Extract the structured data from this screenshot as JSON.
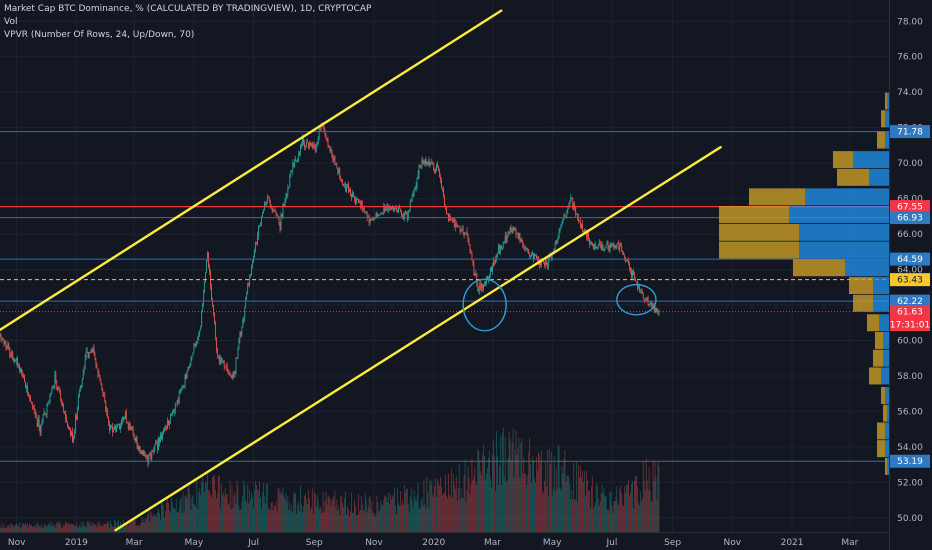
{
  "legend": {
    "line1": "Market Cap BTC Dominance, % (CALCULATED BY TRADINGVIEW), 1D, CRYPTOCAP",
    "line2": "Vol",
    "line3": "VPVR (Number Of Rows, 24, Up/Down, 70)"
  },
  "chart_data": {
    "type": "candlestick",
    "y_axis": {
      "min": 49.2,
      "max": 79.2,
      "ticks": [
        50,
        52,
        54,
        56,
        58,
        60,
        62,
        64,
        66,
        68,
        70,
        72,
        74,
        76,
        78
      ],
      "tick_labels": [
        "50.00",
        "52.00",
        "54.00",
        "56.00",
        "58.00",
        "60.00",
        "62.00",
        "64.00",
        "66.00",
        "68.00",
        "70.00",
        "72.00",
        "74.00",
        "76.00",
        "78.00"
      ]
    },
    "x_axis": {
      "start": "2018-10-15",
      "end": "2021-04-10",
      "tick_labels": [
        {
          "label": "Nov",
          "date": "2018-11-01"
        },
        {
          "label": "2019",
          "date": "2019-01-01"
        },
        {
          "label": "Mar",
          "date": "2019-03-01"
        },
        {
          "label": "May",
          "date": "2019-05-01"
        },
        {
          "label": "Jul",
          "date": "2019-07-01"
        },
        {
          "label": "Sep",
          "date": "2019-09-01"
        },
        {
          "label": "Nov",
          "date": "2019-11-01"
        },
        {
          "label": "2020",
          "date": "2020-01-01"
        },
        {
          "label": "Mar",
          "date": "2020-03-01"
        },
        {
          "label": "May",
          "date": "2020-05-01"
        },
        {
          "label": "Jul",
          "date": "2020-07-01"
        },
        {
          "label": "Sep",
          "date": "2020-09-01"
        },
        {
          "label": "Nov",
          "date": "2020-11-01"
        },
        {
          "label": "2021",
          "date": "2021-01-01"
        },
        {
          "label": "Mar",
          "date": "2021-03-01"
        }
      ]
    },
    "price_path": [
      {
        "date": "2018-10-15",
        "value": 60.2
      },
      {
        "date": "2018-11-05",
        "value": 58.3
      },
      {
        "date": "2018-11-25",
        "value": 55.0
      },
      {
        "date": "2018-12-10",
        "value": 57.8
      },
      {
        "date": "2018-12-28",
        "value": 54.3
      },
      {
        "date": "2019-01-10",
        "value": 59.0
      },
      {
        "date": "2019-01-18",
        "value": 59.6
      },
      {
        "date": "2019-02-05",
        "value": 54.8
      },
      {
        "date": "2019-02-20",
        "value": 55.6
      },
      {
        "date": "2019-03-05",
        "value": 54.0
      },
      {
        "date": "2019-03-15",
        "value": 53.3
      },
      {
        "date": "2019-04-05",
        "value": 55.3
      },
      {
        "date": "2019-04-20",
        "value": 57.5
      },
      {
        "date": "2019-05-08",
        "value": 61.0
      },
      {
        "date": "2019-05-15",
        "value": 65.0
      },
      {
        "date": "2019-05-25",
        "value": 59.0
      },
      {
        "date": "2019-06-10",
        "value": 57.8
      },
      {
        "date": "2019-06-25",
        "value": 63.0
      },
      {
        "date": "2019-07-05",
        "value": 66.0
      },
      {
        "date": "2019-07-15",
        "value": 68.2
      },
      {
        "date": "2019-07-28",
        "value": 66.6
      },
      {
        "date": "2019-08-10",
        "value": 69.8
      },
      {
        "date": "2019-08-20",
        "value": 71.2
      },
      {
        "date": "2019-09-02",
        "value": 70.8
      },
      {
        "date": "2019-09-08",
        "value": 72.3
      },
      {
        "date": "2019-09-20",
        "value": 70.3
      },
      {
        "date": "2019-10-01",
        "value": 68.7
      },
      {
        "date": "2019-10-15",
        "value": 68.0
      },
      {
        "date": "2019-10-28",
        "value": 66.7
      },
      {
        "date": "2019-11-20",
        "value": 67.6
      },
      {
        "date": "2019-12-05",
        "value": 66.9
      },
      {
        "date": "2019-12-20",
        "value": 70.2
      },
      {
        "date": "2020-01-05",
        "value": 69.7
      },
      {
        "date": "2020-01-15",
        "value": 67.0
      },
      {
        "date": "2020-02-05",
        "value": 65.8
      },
      {
        "date": "2020-02-15",
        "value": 62.8
      },
      {
        "date": "2020-02-25",
        "value": 63.6
      },
      {
        "date": "2020-03-10",
        "value": 65.4
      },
      {
        "date": "2020-03-22",
        "value": 66.4
      },
      {
        "date": "2020-04-05",
        "value": 65.0
      },
      {
        "date": "2020-04-25",
        "value": 64.2
      },
      {
        "date": "2020-05-10",
        "value": 66.4
      },
      {
        "date": "2020-05-20",
        "value": 67.9
      },
      {
        "date": "2020-05-28",
        "value": 66.7
      },
      {
        "date": "2020-06-10",
        "value": 65.4
      },
      {
        "date": "2020-06-25",
        "value": 65.3
      },
      {
        "date": "2020-07-10",
        "value": 65.3
      },
      {
        "date": "2020-07-22",
        "value": 63.7
      },
      {
        "date": "2020-08-02",
        "value": 62.5
      },
      {
        "date": "2020-08-12",
        "value": 61.9
      },
      {
        "date": "2020-08-18",
        "value": 61.6
      }
    ],
    "volume_profile_rows": [
      {
        "price": 73.5,
        "up": 0.01,
        "down": 0.01
      },
      {
        "price": 72.5,
        "up": 0.02,
        "down": 0.02
      },
      {
        "price": 71.3,
        "up": 0.04,
        "down": 0.02
      },
      {
        "price": 70.2,
        "up": 0.1,
        "down": 0.18
      },
      {
        "price": 69.2,
        "up": 0.16,
        "down": 0.1
      },
      {
        "price": 68.1,
        "up": 0.28,
        "down": 0.42
      },
      {
        "price": 67.1,
        "up": 0.35,
        "down": 0.5
      },
      {
        "price": 66.1,
        "up": 0.4,
        "down": 0.45
      },
      {
        "price": 65.1,
        "up": 0.4,
        "down": 0.45
      },
      {
        "price": 64.1,
        "up": 0.26,
        "down": 0.22
      },
      {
        "price": 63.1,
        "up": 0.12,
        "down": 0.08
      },
      {
        "price": 62.1,
        "up": 0.1,
        "down": 0.08
      },
      {
        "price": 61.0,
        "up": 0.06,
        "down": 0.05
      },
      {
        "price": 60.0,
        "up": 0.04,
        "down": 0.03
      },
      {
        "price": 59.0,
        "up": 0.05,
        "down": 0.03
      },
      {
        "price": 58.0,
        "up": 0.06,
        "down": 0.04
      },
      {
        "price": 56.9,
        "up": 0.02,
        "down": 0.02
      },
      {
        "price": 55.9,
        "up": 0.02,
        "down": 0.01
      },
      {
        "price": 54.9,
        "up": 0.04,
        "down": 0.02
      },
      {
        "price": 53.9,
        "up": 0.04,
        "down": 0.02
      },
      {
        "price": 52.9,
        "up": 0.01,
        "down": 0.01
      }
    ],
    "horizontal_levels": [
      {
        "value": 71.78,
        "label": "71.78",
        "color": "#2f6fb3",
        "label_bg": "#2f79c2",
        "style": "solid"
      },
      {
        "value": 67.55,
        "label": "67.55",
        "color": "#f23645",
        "label_bg": "#f23645",
        "style": "solid"
      },
      {
        "value": 66.93,
        "label": "66.93",
        "color": "#2f6fb3",
        "label_bg": "#2f79c2",
        "style": "solid"
      },
      {
        "value": 64.59,
        "label": "64.59",
        "color": "#2f6fb3",
        "label_bg": "#2f79c2",
        "style": "solid"
      },
      {
        "value": 63.43,
        "label": "63.43",
        "color": "#f7c82c",
        "label_bg": "#f7c82c",
        "style": "dashed"
      },
      {
        "value": 62.22,
        "label": "62.22",
        "color": "#2f6fb3",
        "label_bg": "#2f79c2",
        "style": "solid"
      },
      {
        "value": 61.63,
        "label": "61.63",
        "color": "#f23645",
        "label_bg": "#f23645",
        "style": "dotted"
      },
      {
        "value": 53.19,
        "label": "53.19",
        "color": "#2f6fb3",
        "label_bg": "#2f79c2",
        "style": "solid"
      }
    ],
    "countdown": {
      "value": 60.9,
      "label": "17:31:01",
      "label_bg": "#f23645"
    },
    "trendlines": [
      {
        "name": "channel-upper",
        "color": "#ffeb3b",
        "from": {
          "date": "2018-10-15",
          "value": 60.6
        },
        "to": {
          "date": "2020-03-10",
          "value": 78.6
        }
      },
      {
        "name": "channel-lower",
        "color": "#ffeb3b",
        "from": {
          "date": "2019-02-10",
          "value": 49.3
        },
        "to": {
          "date": "2020-10-20",
          "value": 70.9
        }
      }
    ],
    "annotations": [
      {
        "name": "ellipse-march-2020",
        "type": "ellipse",
        "date": "2020-02-22",
        "value": 62.0,
        "rx_days": 22,
        "ry_value": 1.45,
        "color": "#2a9fd6"
      },
      {
        "name": "ellipse-august-2020",
        "type": "ellipse",
        "date": "2020-07-26",
        "value": 62.3,
        "rx_days": 20,
        "ry_value": 0.85,
        "color": "#2a9fd6"
      }
    ],
    "colors": {
      "up": "#26a69a",
      "down": "#ef5350",
      "background": "#131722",
      "grid": "#1e2230",
      "axis_text": "#b2b5be"
    }
  }
}
